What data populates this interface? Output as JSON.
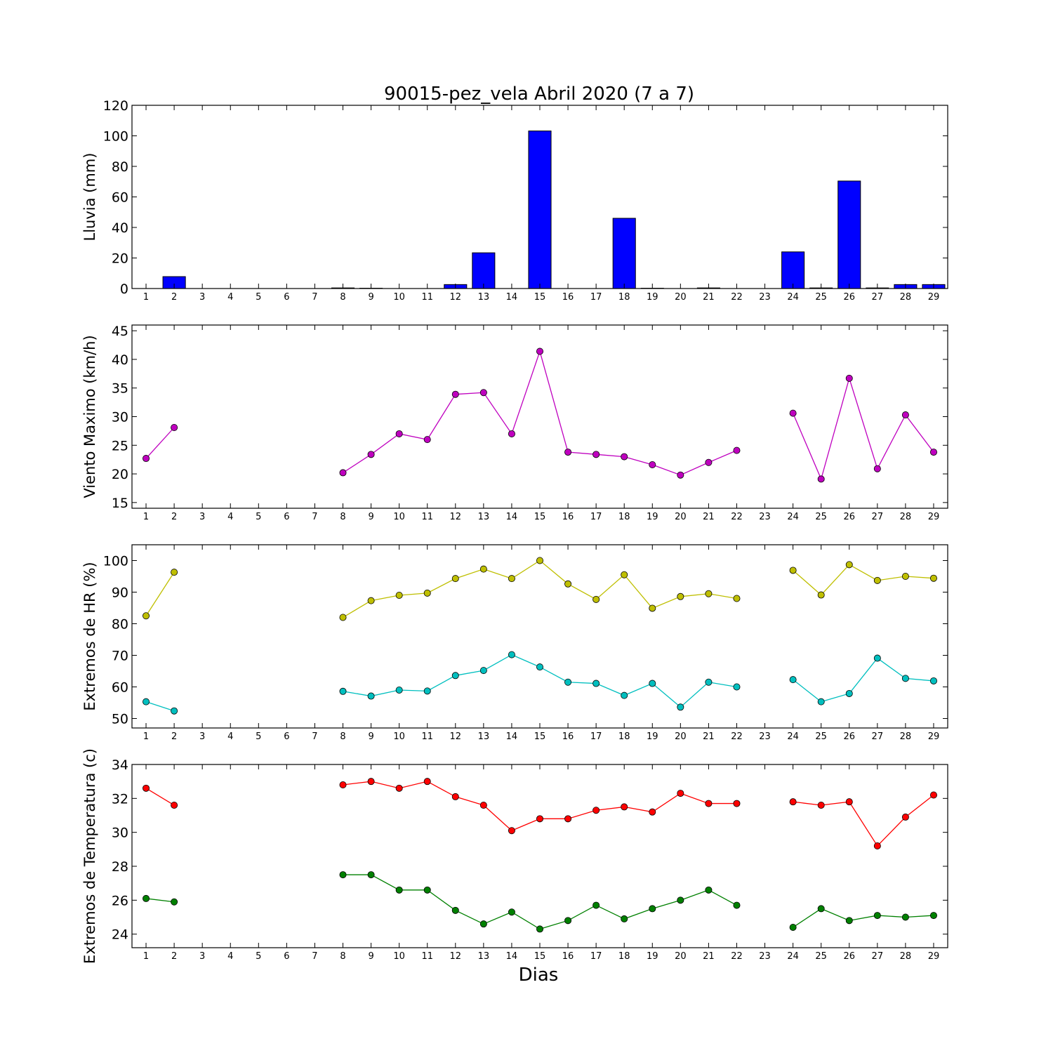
{
  "title": "90015-pez_vela Abril 2020  (7 a 7)",
  "colors": {
    "rain": "#0000ff",
    "wind": "#bf00bf",
    "hr_max": "#bfbf00",
    "hr_min": "#00bfbf",
    "t_max": "#ff0000",
    "t_min": "#008000"
  },
  "chart_data": [
    {
      "type": "bar",
      "ylabel": "Lluvia (mm)",
      "xlabel": "",
      "ylim": [
        0,
        120
      ],
      "yticks": [
        0,
        20,
        40,
        60,
        80,
        100,
        120
      ],
      "xlim": [
        0.5,
        29.5
      ],
      "categories": [
        1,
        2,
        3,
        4,
        5,
        6,
        7,
        8,
        9,
        10,
        11,
        12,
        13,
        14,
        15,
        16,
        17,
        18,
        19,
        20,
        21,
        22,
        23,
        24,
        25,
        26,
        27,
        28,
        29
      ],
      "values": [
        0,
        7.8,
        0,
        0,
        0,
        0,
        0,
        0.4,
        0.2,
        0,
        0,
        2.6,
        23.4,
        0,
        103.2,
        0,
        0,
        46,
        0.2,
        0,
        0.4,
        0,
        0,
        24,
        0.4,
        70.4,
        0.4,
        2.6,
        2.6
      ]
    },
    {
      "type": "line",
      "ylabel": "Viento Maximo (km/h)",
      "xlabel": "",
      "ylim": [
        14,
        46
      ],
      "yticks": [
        15,
        20,
        25,
        30,
        35,
        40,
        45
      ],
      "xlim": [
        0.5,
        29.5
      ],
      "series": [
        {
          "color": "wind",
          "x": [
            1,
            2,
            3,
            4,
            5,
            6,
            7,
            8,
            9,
            10,
            11,
            12,
            13,
            14,
            15,
            16,
            17,
            18,
            19,
            20,
            21,
            22,
            23,
            24,
            25,
            26,
            27,
            28,
            29
          ],
          "values": [
            22.7,
            28.1,
            null,
            null,
            null,
            null,
            null,
            20.2,
            23.4,
            27,
            26,
            33.9,
            34.2,
            27,
            41.4,
            23.8,
            23.4,
            23,
            21.6,
            19.8,
            22,
            24.1,
            null,
            30.6,
            19.1,
            36.7,
            20.9,
            30.3,
            23.8
          ]
        }
      ]
    },
    {
      "type": "line",
      "ylabel": "Extremos de HR (%)",
      "xlabel": "",
      "ylim": [
        47,
        105
      ],
      "yticks": [
        50,
        60,
        70,
        80,
        90,
        100
      ],
      "xlim": [
        0.5,
        29.5
      ],
      "series": [
        {
          "color": "hr_max",
          "x": [
            1,
            2,
            3,
            4,
            5,
            6,
            7,
            8,
            9,
            10,
            11,
            12,
            13,
            14,
            15,
            16,
            17,
            18,
            19,
            20,
            21,
            22,
            23,
            24,
            25,
            26,
            27,
            28,
            29
          ],
          "values": [
            82.5,
            96.3,
            null,
            null,
            null,
            null,
            null,
            82,
            87.3,
            89,
            89.7,
            94.3,
            97.3,
            94.3,
            100,
            92.6,
            87.7,
            95.5,
            84.9,
            88.6,
            89.5,
            88,
            null,
            96.9,
            89.1,
            98.7,
            93.7,
            95,
            94.4
          ]
        },
        {
          "color": "hr_min",
          "x": [
            1,
            2,
            3,
            4,
            5,
            6,
            7,
            8,
            9,
            10,
            11,
            12,
            13,
            14,
            15,
            16,
            17,
            18,
            19,
            20,
            21,
            22,
            23,
            24,
            25,
            26,
            27,
            28,
            29
          ],
          "values": [
            55.3,
            52.4,
            null,
            null,
            null,
            null,
            null,
            58.6,
            57.1,
            59,
            58.7,
            63.6,
            65.2,
            70.2,
            66.3,
            61.5,
            61.1,
            57.3,
            61.1,
            53.6,
            61.5,
            60,
            null,
            62.3,
            55.3,
            57.9,
            69.1,
            62.7,
            61.9
          ]
        }
      ]
    },
    {
      "type": "line",
      "ylabel": "Extremos de Temperatura (c)",
      "xlabel": "Dias",
      "ylim": [
        23.2,
        34
      ],
      "yticks": [
        24,
        26,
        28,
        30,
        32,
        34
      ],
      "xlim": [
        0.5,
        29.5
      ],
      "series": [
        {
          "color": "t_max",
          "x": [
            1,
            2,
            3,
            4,
            5,
            6,
            7,
            8,
            9,
            10,
            11,
            12,
            13,
            14,
            15,
            16,
            17,
            18,
            19,
            20,
            21,
            22,
            23,
            24,
            25,
            26,
            27,
            28,
            29
          ],
          "values": [
            32.6,
            31.6,
            null,
            null,
            null,
            null,
            null,
            32.8,
            33,
            32.6,
            33,
            32.1,
            31.6,
            30.1,
            30.8,
            30.8,
            31.3,
            31.5,
            31.2,
            32.3,
            31.7,
            31.7,
            null,
            31.8,
            31.6,
            31.8,
            29.2,
            30.9,
            32.2
          ]
        },
        {
          "color": "t_min",
          "x": [
            1,
            2,
            3,
            4,
            5,
            6,
            7,
            8,
            9,
            10,
            11,
            12,
            13,
            14,
            15,
            16,
            17,
            18,
            19,
            20,
            21,
            22,
            23,
            24,
            25,
            26,
            27,
            28,
            29
          ],
          "values": [
            26.1,
            25.9,
            null,
            null,
            null,
            null,
            null,
            27.5,
            27.5,
            26.6,
            26.6,
            25.4,
            24.6,
            25.3,
            24.3,
            24.8,
            25.7,
            24.9,
            25.5,
            26,
            26.6,
            25.7,
            null,
            24.4,
            25.5,
            24.8,
            25.1,
            25,
            25.1
          ]
        }
      ]
    }
  ]
}
